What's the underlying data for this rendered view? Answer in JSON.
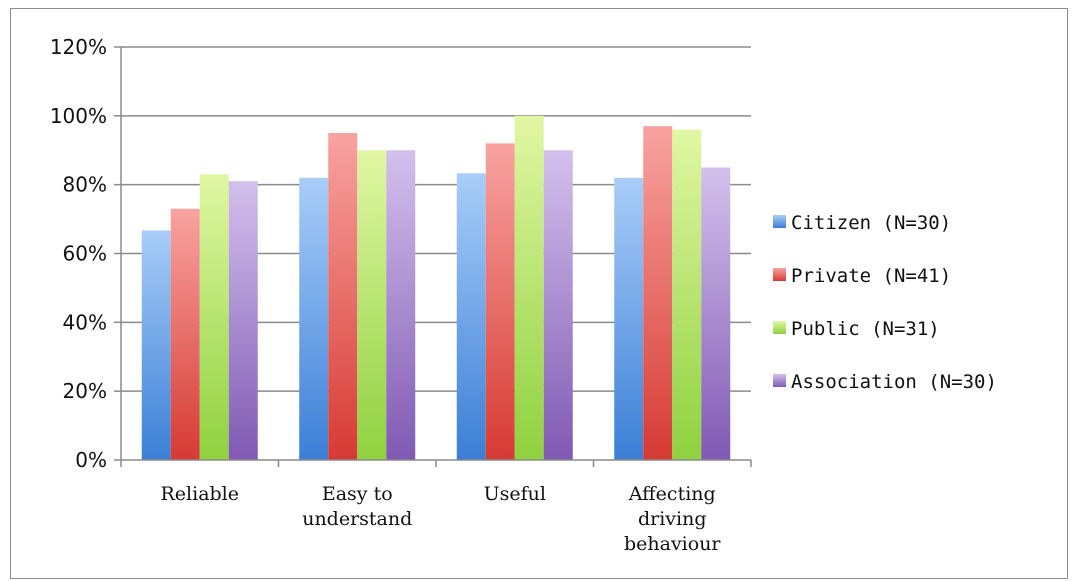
{
  "chart_data": {
    "type": "bar",
    "categories": [
      "Reliable",
      "Easy to understand",
      "Useful",
      "Affecting driving behaviour"
    ],
    "category_lines": [
      [
        "Reliable"
      ],
      [
        "Easy to",
        "understand"
      ],
      [
        "Useful"
      ],
      [
        "Affecting",
        "driving",
        "behaviour"
      ]
    ],
    "series": [
      {
        "name": "Citizen (N=30)",
        "values": [
          0.667,
          0.82,
          0.833,
          0.82
        ],
        "color_top": "#a8cdf8",
        "color_bottom": "#3b7fd6"
      },
      {
        "name": "Private (N=41)",
        "values": [
          0.73,
          0.95,
          0.92,
          0.97
        ],
        "color_top": "#f8a3a0",
        "color_bottom": "#d63a33"
      },
      {
        "name": "Public (N=31)",
        "values": [
          0.83,
          0.9,
          1.0,
          0.96
        ],
        "color_top": "#e0f7a3",
        "color_bottom": "#8fd13f"
      },
      {
        "name": "Association (N=30)",
        "values": [
          0.81,
          0.9,
          0.9,
          0.85
        ],
        "color_top": "#d3c0ec",
        "color_bottom": "#8059b3"
      }
    ],
    "ylim": [
      0,
      1.2
    ],
    "yticks": [
      0,
      0.2,
      0.4,
      0.6,
      0.8,
      1.0,
      1.2
    ],
    "ytick_labels": [
      "0%",
      "20%",
      "40%",
      "60%",
      "80%",
      "100%",
      "120%"
    ],
    "grid": true,
    "legend_position": "right",
    "title": "",
    "xlabel": "",
    "ylabel": ""
  }
}
